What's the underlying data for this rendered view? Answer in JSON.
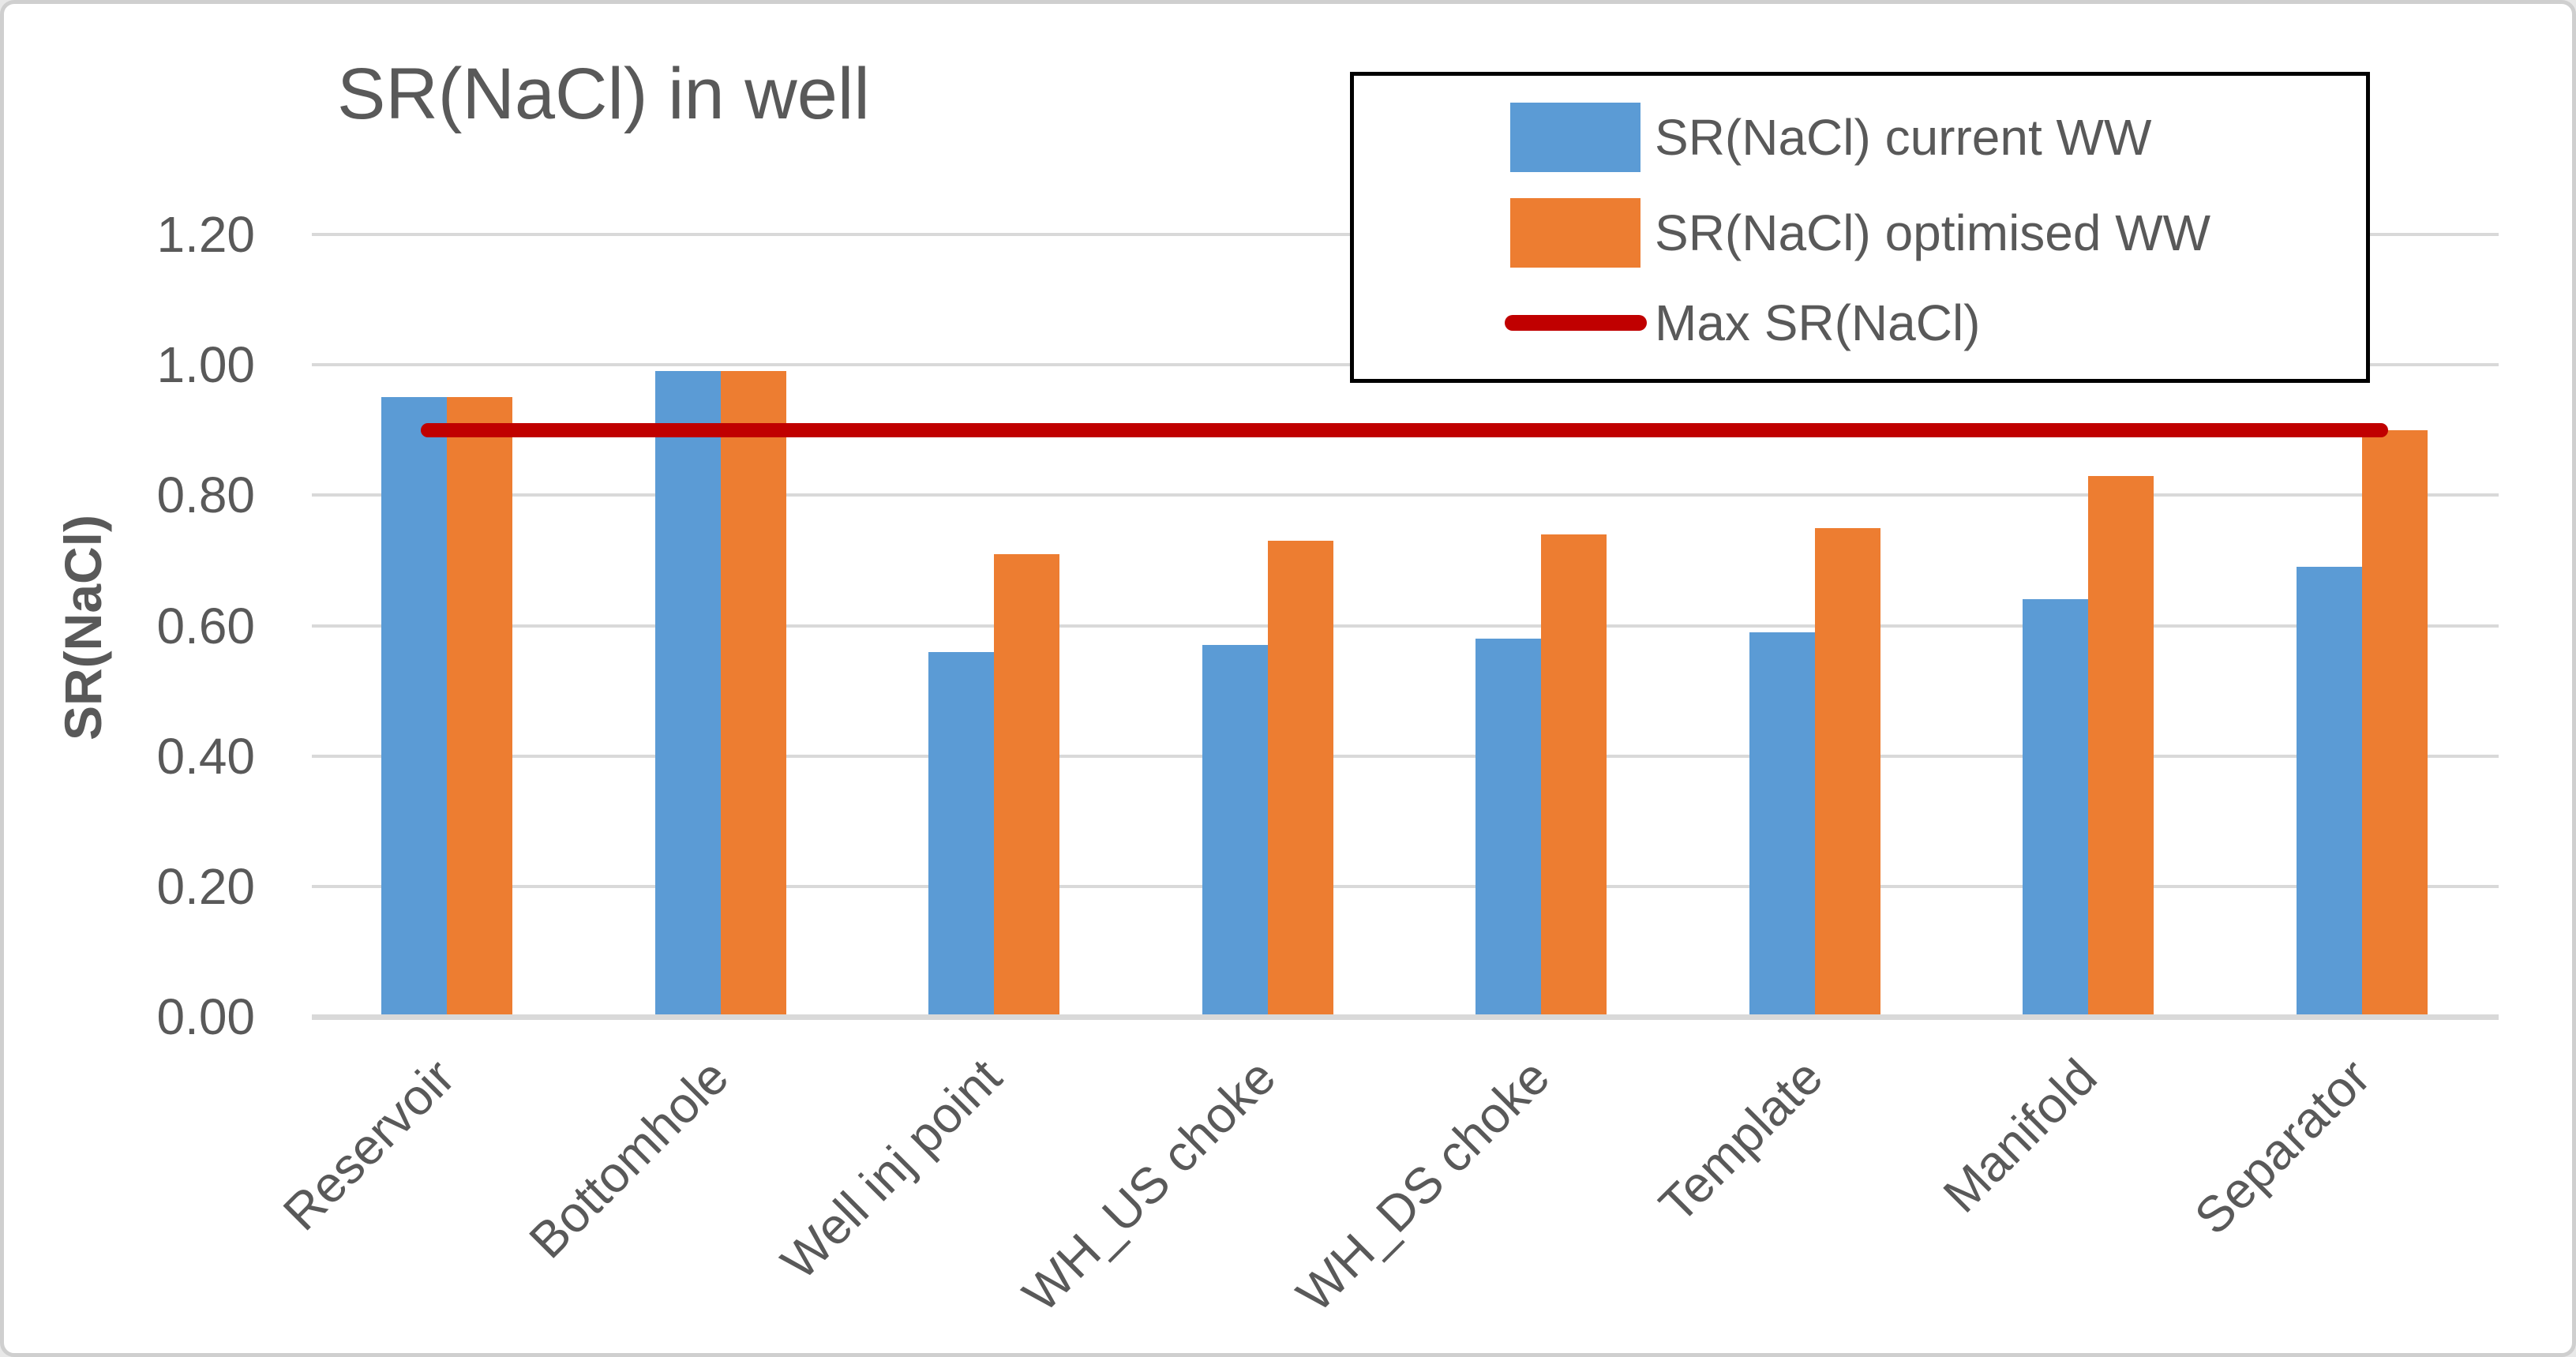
{
  "chart_data": {
    "type": "bar",
    "title": "SR(NaCl) in well",
    "ylabel": "SR(NaCl)",
    "xlabel": "",
    "categories": [
      "Reservoir",
      "Bottomhole",
      "Well inj point",
      "WH_US choke",
      "WH_DS choke",
      "Template",
      "Manifold",
      "Separator"
    ],
    "series": [
      {
        "name": "SR(NaCl) current WW",
        "type": "bar",
        "color": "#5B9BD5",
        "values": [
          0.95,
          0.99,
          0.56,
          0.57,
          0.58,
          0.59,
          0.64,
          0.69
        ]
      },
      {
        "name": "SR(NaCl) optimised WW",
        "type": "bar",
        "color": "#ED7D31",
        "values": [
          0.95,
          0.99,
          0.71,
          0.73,
          0.74,
          0.75,
          0.83,
          0.9
        ]
      },
      {
        "name": "Max SR(NaCl)",
        "type": "line",
        "color": "#C00000",
        "values": [
          0.9,
          0.9,
          0.9,
          0.9,
          0.9,
          0.9,
          0.9,
          0.9
        ]
      }
    ],
    "ylim": [
      0,
      1.2
    ],
    "yticks": [
      "0.00",
      "0.20",
      "0.40",
      "0.60",
      "0.80",
      "1.00",
      "1.20"
    ],
    "grid": true,
    "legend_position": "top-right",
    "colors": {
      "text": "#595959",
      "gridline": "#D9D9D9",
      "legend_border": "#000000"
    }
  }
}
